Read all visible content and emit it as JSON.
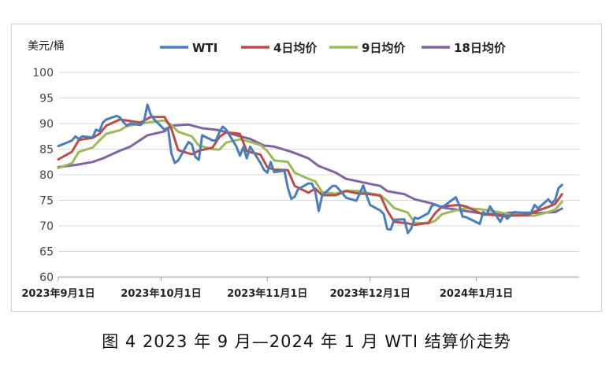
{
  "caption": "图 4   2023 年 9 月—2024 年 1 月 WTI 结算价走势",
  "chart_data": {
    "type": "line",
    "title": "",
    "ylabel": "美元/桶",
    "xlabel": "",
    "ylim": [
      60,
      100
    ],
    "yticks": [
      60,
      65,
      70,
      75,
      80,
      85,
      90,
      95,
      100
    ],
    "xlim": [
      "2023-09-01",
      "2024-01-31"
    ],
    "xticks": [
      {
        "date": "2023-09-01",
        "label": "2023年9月1日"
      },
      {
        "date": "2023-10-01",
        "label": "2023年10月1日"
      },
      {
        "date": "2023-11-01",
        "label": "2023年11月1日"
      },
      {
        "date": "2023-12-01",
        "label": "2023年12月1日"
      },
      {
        "date": "2024-01-01",
        "label": "2024年1月1日"
      }
    ],
    "grid": "horizontal",
    "legend": "top",
    "series": [
      {
        "name": "WTI",
        "color": "#4a7ebb",
        "points": [
          [
            "2023-09-01",
            85.6
          ],
          [
            "2023-09-04",
            86.4
          ],
          [
            "2023-09-05",
            86.7
          ],
          [
            "2023-09-06",
            87.5
          ],
          [
            "2023-09-07",
            87.0
          ],
          [
            "2023-09-08",
            87.5
          ],
          [
            "2023-09-11",
            87.3
          ],
          [
            "2023-09-12",
            88.8
          ],
          [
            "2023-09-13",
            88.5
          ],
          [
            "2023-09-14",
            90.2
          ],
          [
            "2023-09-15",
            90.8
          ],
          [
            "2023-09-18",
            91.5
          ],
          [
            "2023-09-19",
            91.2
          ],
          [
            "2023-09-20",
            90.3
          ],
          [
            "2023-09-21",
            89.6
          ],
          [
            "2023-09-22",
            90.0
          ],
          [
            "2023-09-25",
            89.7
          ],
          [
            "2023-09-26",
            90.4
          ],
          [
            "2023-09-27",
            93.7
          ],
          [
            "2023-09-28",
            91.7
          ],
          [
            "2023-09-29",
            90.8
          ],
          [
            "2023-10-02",
            88.8
          ],
          [
            "2023-10-03",
            89.2
          ],
          [
            "2023-10-04",
            84.2
          ],
          [
            "2023-10-05",
            82.3
          ],
          [
            "2023-10-06",
            82.8
          ],
          [
            "2023-10-09",
            86.4
          ],
          [
            "2023-10-10",
            85.9
          ],
          [
            "2023-10-11",
            83.5
          ],
          [
            "2023-10-12",
            82.9
          ],
          [
            "2023-10-13",
            87.7
          ],
          [
            "2023-10-16",
            86.7
          ],
          [
            "2023-10-17",
            86.7
          ],
          [
            "2023-10-18",
            88.3
          ],
          [
            "2023-10-19",
            89.4
          ],
          [
            "2023-10-20",
            88.8
          ],
          [
            "2023-10-23",
            85.5
          ],
          [
            "2023-10-24",
            83.7
          ],
          [
            "2023-10-25",
            85.4
          ],
          [
            "2023-10-26",
            83.2
          ],
          [
            "2023-10-27",
            85.5
          ],
          [
            "2023-10-30",
            82.3
          ],
          [
            "2023-10-31",
            81.0
          ],
          [
            "2023-11-01",
            80.4
          ],
          [
            "2023-11-02",
            82.5
          ],
          [
            "2023-11-03",
            80.5
          ],
          [
            "2023-11-06",
            80.8
          ],
          [
            "2023-11-07",
            77.4
          ],
          [
            "2023-11-08",
            75.3
          ],
          [
            "2023-11-09",
            75.7
          ],
          [
            "2023-11-10",
            77.2
          ],
          [
            "2023-11-13",
            78.3
          ],
          [
            "2023-11-14",
            78.3
          ],
          [
            "2023-11-15",
            76.7
          ],
          [
            "2023-11-16",
            72.9
          ],
          [
            "2023-11-17",
            75.9
          ],
          [
            "2023-11-20",
            77.8
          ],
          [
            "2023-11-21",
            77.8
          ],
          [
            "2023-11-22",
            77.1
          ],
          [
            "2023-11-24",
            75.5
          ],
          [
            "2023-11-27",
            74.9
          ],
          [
            "2023-11-28",
            76.4
          ],
          [
            "2023-11-29",
            77.9
          ],
          [
            "2023-11-30",
            75.9
          ],
          [
            "2023-12-01",
            74.1
          ],
          [
            "2023-12-04",
            73.0
          ],
          [
            "2023-12-05",
            72.3
          ],
          [
            "2023-12-06",
            69.4
          ],
          [
            "2023-12-07",
            69.3
          ],
          [
            "2023-12-08",
            71.2
          ],
          [
            "2023-12-11",
            71.3
          ],
          [
            "2023-12-12",
            68.6
          ],
          [
            "2023-12-13",
            69.5
          ],
          [
            "2023-12-14",
            71.6
          ],
          [
            "2023-12-15",
            71.4
          ],
          [
            "2023-12-18",
            72.5
          ],
          [
            "2023-12-19",
            73.9
          ],
          [
            "2023-12-20",
            74.2
          ],
          [
            "2023-12-21",
            73.9
          ],
          [
            "2023-12-22",
            73.6
          ],
          [
            "2023-12-26",
            75.6
          ],
          [
            "2023-12-27",
            74.1
          ],
          [
            "2023-12-28",
            71.8
          ],
          [
            "2023-12-29",
            71.7
          ],
          [
            "2024-01-02",
            70.4
          ],
          [
            "2024-01-03",
            72.7
          ],
          [
            "2024-01-04",
            72.2
          ],
          [
            "2024-01-05",
            73.8
          ],
          [
            "2024-01-08",
            70.8
          ],
          [
            "2024-01-09",
            72.2
          ],
          [
            "2024-01-10",
            71.4
          ],
          [
            "2024-01-11",
            72.0
          ],
          [
            "2024-01-12",
            72.7
          ],
          [
            "2024-01-16",
            72.4
          ],
          [
            "2024-01-17",
            72.6
          ],
          [
            "2024-01-18",
            74.1
          ],
          [
            "2024-01-19",
            73.4
          ],
          [
            "2024-01-22",
            75.2
          ],
          [
            "2024-01-23",
            74.4
          ],
          [
            "2024-01-24",
            75.1
          ],
          [
            "2024-01-25",
            77.4
          ],
          [
            "2024-01-26",
            78.0
          ]
        ]
      },
      {
        "name": "4日均价",
        "color": "#be4b48",
        "points": [
          [
            "2023-09-01",
            83.0
          ],
          [
            "2023-09-05",
            84.5
          ],
          [
            "2023-09-07",
            86.8
          ],
          [
            "2023-09-11",
            87.2
          ],
          [
            "2023-09-13",
            88.0
          ],
          [
            "2023-09-15",
            89.6
          ],
          [
            "2023-09-19",
            90.8
          ],
          [
            "2023-09-21",
            90.6
          ],
          [
            "2023-09-25",
            90.2
          ],
          [
            "2023-09-28",
            91.3
          ],
          [
            "2023-10-02",
            91.3
          ],
          [
            "2023-10-04",
            89.0
          ],
          [
            "2023-10-06",
            84.8
          ],
          [
            "2023-10-10",
            84.0
          ],
          [
            "2023-10-12",
            84.7
          ],
          [
            "2023-10-16",
            85.3
          ],
          [
            "2023-10-18",
            87.4
          ],
          [
            "2023-10-20",
            88.3
          ],
          [
            "2023-10-24",
            88.0
          ],
          [
            "2023-10-26",
            84.6
          ],
          [
            "2023-10-30",
            83.9
          ],
          [
            "2023-11-01",
            81.5
          ],
          [
            "2023-11-03",
            81.0
          ],
          [
            "2023-11-07",
            80.9
          ],
          [
            "2023-11-09",
            77.8
          ],
          [
            "2023-11-13",
            76.5
          ],
          [
            "2023-11-15",
            77.3
          ],
          [
            "2023-11-17",
            76.0
          ],
          [
            "2023-11-21",
            76.0
          ],
          [
            "2023-11-24",
            76.8
          ],
          [
            "2023-11-28",
            76.3
          ],
          [
            "2023-11-30",
            76.3
          ],
          [
            "2023-12-04",
            75.9
          ],
          [
            "2023-12-06",
            73.0
          ],
          [
            "2023-12-08",
            70.8
          ],
          [
            "2023-12-12",
            70.5
          ],
          [
            "2023-12-14",
            70.2
          ],
          [
            "2023-12-18",
            70.6
          ],
          [
            "2023-12-20",
            72.5
          ],
          [
            "2023-12-22",
            73.8
          ],
          [
            "2023-12-27",
            74.1
          ],
          [
            "2023-12-29",
            73.8
          ],
          [
            "2024-01-03",
            72.2
          ],
          [
            "2024-01-05",
            72.2
          ],
          [
            "2024-01-09",
            71.9
          ],
          [
            "2024-01-11",
            72.0
          ],
          [
            "2024-01-16",
            72.1
          ],
          [
            "2024-01-18",
            72.8
          ],
          [
            "2024-01-22",
            73.7
          ],
          [
            "2024-01-24",
            74.3
          ],
          [
            "2024-01-26",
            76.2
          ]
        ]
      },
      {
        "name": "9日均价",
        "color": "#9bbb59",
        "points": [
          [
            "2023-09-01",
            81.3
          ],
          [
            "2023-09-05",
            82.3
          ],
          [
            "2023-09-07",
            84.5
          ],
          [
            "2023-09-11",
            85.3
          ],
          [
            "2023-09-13",
            86.7
          ],
          [
            "2023-09-15",
            88.0
          ],
          [
            "2023-09-19",
            88.7
          ],
          [
            "2023-09-21",
            89.5
          ],
          [
            "2023-09-25",
            90.0
          ],
          [
            "2023-09-28",
            90.3
          ],
          [
            "2023-10-02",
            90.6
          ],
          [
            "2023-10-04",
            89.7
          ],
          [
            "2023-10-06",
            88.4
          ],
          [
            "2023-10-10",
            87.5
          ],
          [
            "2023-10-12",
            85.7
          ],
          [
            "2023-10-16",
            85.0
          ],
          [
            "2023-10-18",
            84.9
          ],
          [
            "2023-10-20",
            86.3
          ],
          [
            "2023-10-24",
            86.9
          ],
          [
            "2023-10-26",
            86.6
          ],
          [
            "2023-10-30",
            85.8
          ],
          [
            "2023-11-01",
            84.6
          ],
          [
            "2023-11-03",
            82.8
          ],
          [
            "2023-11-07",
            82.5
          ],
          [
            "2023-11-09",
            80.4
          ],
          [
            "2023-11-13",
            79.2
          ],
          [
            "2023-11-15",
            78.7
          ],
          [
            "2023-11-17",
            76.6
          ],
          [
            "2023-11-21",
            76.3
          ],
          [
            "2023-11-24",
            76.9
          ],
          [
            "2023-11-28",
            76.8
          ],
          [
            "2023-11-30",
            76.5
          ],
          [
            "2023-12-04",
            76.0
          ],
          [
            "2023-12-06",
            74.9
          ],
          [
            "2023-12-08",
            73.5
          ],
          [
            "2023-12-12",
            72.6
          ],
          [
            "2023-12-14",
            70.6
          ],
          [
            "2023-12-18",
            70.5
          ],
          [
            "2023-12-20",
            71.0
          ],
          [
            "2023-12-22",
            72.3
          ],
          [
            "2023-12-27",
            73.2
          ],
          [
            "2023-12-29",
            73.5
          ],
          [
            "2024-01-03",
            73.2
          ],
          [
            "2024-01-05",
            73.0
          ],
          [
            "2024-01-09",
            72.5
          ],
          [
            "2024-01-11",
            72.2
          ],
          [
            "2024-01-16",
            72.0
          ],
          [
            "2024-01-18",
            72.0
          ],
          [
            "2024-01-22",
            72.7
          ],
          [
            "2024-01-24",
            73.2
          ],
          [
            "2024-01-26",
            74.7
          ]
        ]
      },
      {
        "name": "18日均价",
        "color": "#8064a2",
        "points": [
          [
            "2023-09-01",
            81.5
          ],
          [
            "2023-09-06",
            81.9
          ],
          [
            "2023-09-11",
            82.5
          ],
          [
            "2023-09-14",
            83.2
          ],
          [
            "2023-09-19",
            84.7
          ],
          [
            "2023-09-22",
            85.5
          ],
          [
            "2023-09-27",
            87.7
          ],
          [
            "2023-10-02",
            88.5
          ],
          [
            "2023-10-04",
            89.6
          ],
          [
            "2023-10-09",
            89.8
          ],
          [
            "2023-10-13",
            89.1
          ],
          [
            "2023-10-18",
            88.7
          ],
          [
            "2023-10-23",
            87.7
          ],
          [
            "2023-10-27",
            87.0
          ],
          [
            "2023-10-31",
            85.7
          ],
          [
            "2023-11-03",
            85.5
          ],
          [
            "2023-11-08",
            84.5
          ],
          [
            "2023-11-13",
            83.2
          ],
          [
            "2023-11-16",
            81.7
          ],
          [
            "2023-11-21",
            80.4
          ],
          [
            "2023-11-24",
            79.2
          ],
          [
            "2023-11-29",
            78.5
          ],
          [
            "2023-12-04",
            77.8
          ],
          [
            "2023-12-06",
            76.8
          ],
          [
            "2023-12-11",
            76.2
          ],
          [
            "2023-12-14",
            75.2
          ],
          [
            "2023-12-19",
            74.4
          ],
          [
            "2023-12-22",
            73.6
          ],
          [
            "2023-12-28",
            73.0
          ],
          [
            "2024-01-03",
            72.4
          ],
          [
            "2024-01-08",
            72.3
          ],
          [
            "2024-01-11",
            72.6
          ],
          [
            "2024-01-16",
            72.6
          ],
          [
            "2024-01-19",
            72.5
          ],
          [
            "2024-01-24",
            72.7
          ],
          [
            "2024-01-26",
            73.4
          ]
        ]
      }
    ]
  }
}
